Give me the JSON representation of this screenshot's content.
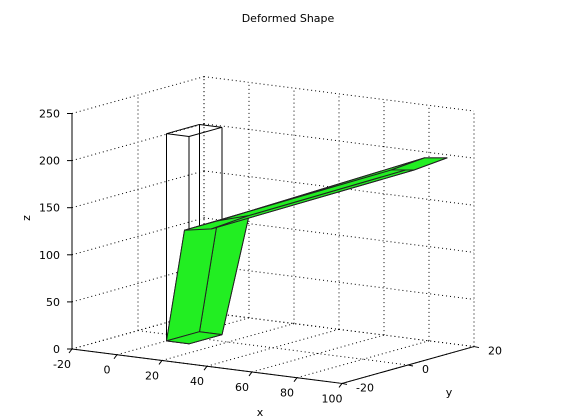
{
  "chart_data": {
    "type": "3d-surface",
    "title": "Deformed Shape",
    "xlabel": "x",
    "ylabel": "y",
    "zlabel": "z",
    "xlim": [
      -20,
      100
    ],
    "ylim": [
      -20,
      20
    ],
    "zlim": [
      0,
      250
    ],
    "xticks": [
      "-20",
      "0",
      "20",
      "40",
      "60",
      "80",
      "100"
    ],
    "yticks": [
      "-20",
      "0",
      "20"
    ],
    "zticks": [
      "0",
      "50",
      "100",
      "150",
      "200",
      "250"
    ],
    "grid": true,
    "colors": {
      "deformed_face": "#22ee22",
      "deformed_edge": "#1a1a1a",
      "undeformed_edge": "#000000",
      "grid": "#000000"
    },
    "series": [
      {
        "style": "undeformed wireframe",
        "bottom": [
          [
            0,
            -5,
            0
          ],
          [
            10,
            -5,
            0
          ],
          [
            10,
            5,
            0
          ],
          [
            0,
            5,
            0
          ]
        ],
        "top": [
          [
            0,
            -5,
            220
          ],
          [
            10,
            -5,
            220
          ],
          [
            10,
            5,
            220
          ],
          [
            0,
            5,
            220
          ]
        ]
      },
      {
        "style": "deformed surface",
        "path_bottom": [
          [
            0,
            -5,
            0
          ],
          [
            10,
            -5,
            0
          ],
          [
            10,
            5,
            0
          ],
          [
            0,
            5,
            0
          ]
        ],
        "path_knee": [
          [
            8,
            -5,
            120
          ],
          [
            20,
            -5,
            125
          ],
          [
            22,
            5,
            130
          ],
          [
            8,
            5,
            120
          ]
        ],
        "path_tip": [
          [
            100,
            -5,
            212
          ],
          [
            110,
            -5,
            215
          ],
          [
            110,
            5,
            218
          ],
          [
            100,
            5,
            215
          ]
        ]
      }
    ]
  }
}
